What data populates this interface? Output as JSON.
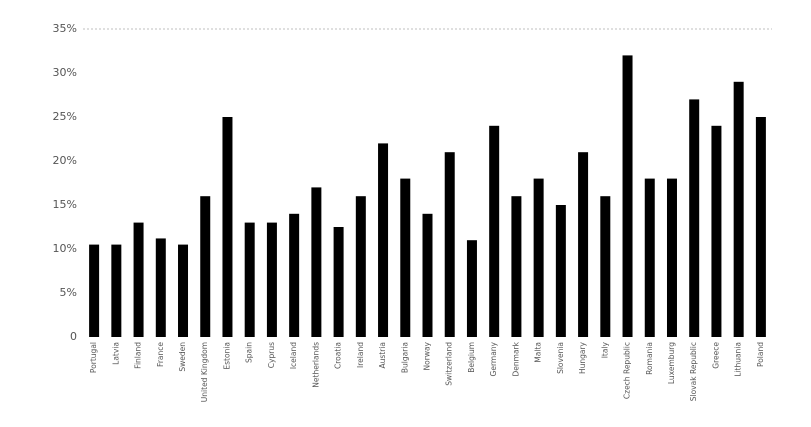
{
  "chart_data": {
    "type": "bar",
    "categories": [
      "Portugal",
      "Latvia",
      "Finland",
      "France",
      "Sweden",
      "United Kingdom",
      "Estonia",
      "Spain",
      "Cyprus",
      "Iceland",
      "Netherlands",
      "Croatia",
      "Ireland",
      "Austria",
      "Bulgaria",
      "Norway",
      "Switzerland",
      "Belgium",
      "Germany",
      "Denmark",
      "Malta",
      "Slovenia",
      "Hungary",
      "Italy",
      "Czech Republic",
      "Romania",
      "Luxemburg",
      "Slovak Republic",
      "Greece",
      "Lithuania",
      "Poland"
    ],
    "values": [
      10.5,
      10.5,
      13,
      11.2,
      10.5,
      16,
      25,
      13,
      13,
      14,
      17,
      12.5,
      16,
      22,
      18,
      14,
      21,
      11,
      24,
      16,
      18,
      15,
      21,
      16,
      32,
      18,
      18,
      27,
      24,
      29,
      25
    ],
    "color": "#000000",
    "ylim": [
      0,
      35
    ],
    "yticks": [
      0,
      {
        "value": 5,
        "label": "5%"
      },
      {
        "value": 10,
        "label": "10%"
      },
      {
        "value": 15,
        "label": "15%"
      },
      {
        "value": 20,
        "label": "20%"
      },
      {
        "value": 25,
        "label": "25%"
      },
      {
        "value": 30,
        "label": "30%"
      },
      {
        "value": 35,
        "label": "35%"
      }
    ],
    "grid": false
  }
}
